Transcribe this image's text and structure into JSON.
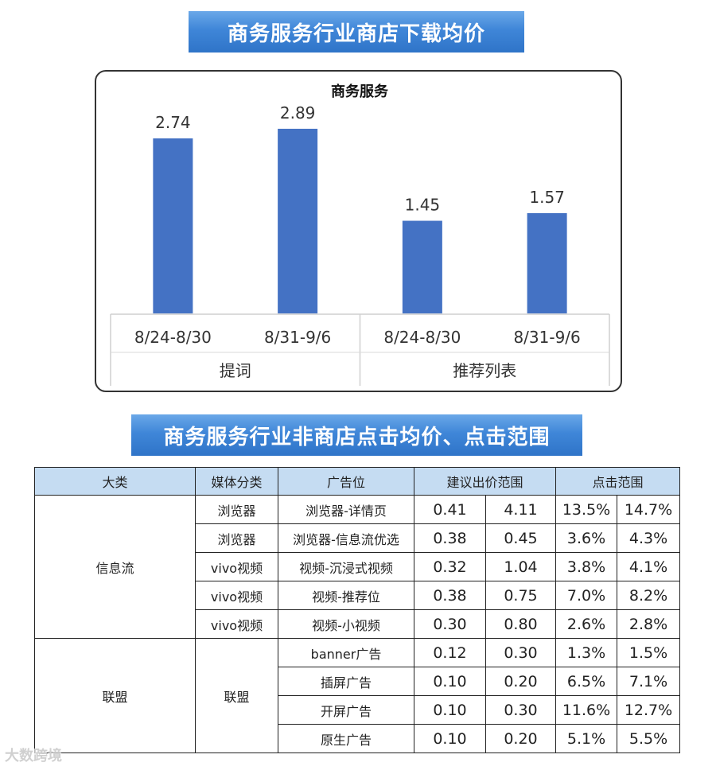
{
  "banner_top": "商务服务行业商店下载均价",
  "banner_bottom": "商务服务行业非商店点击均价、点击范围",
  "chart_data": {
    "type": "bar",
    "title": "商务服务",
    "groups": [
      {
        "name": "提词",
        "categories": [
          "8/24-8/30",
          "8/31-9/6"
        ],
        "values": [
          2.74,
          2.89
        ]
      },
      {
        "name": "推荐列表",
        "categories": [
          "8/24-8/30",
          "8/31-9/6"
        ],
        "values": [
          1.45,
          1.57
        ]
      }
    ],
    "value_labels": [
      "2.74",
      "2.89",
      "1.45",
      "1.57"
    ],
    "ylim": [
      0,
      3.2
    ],
    "grid": false,
    "bar_color": "#4472c4"
  },
  "table": {
    "headers": [
      "大类",
      "媒体分类",
      "广告位",
      "建议出价范围",
      "点击范围"
    ],
    "groups": [
      {
        "category": "信息流",
        "rows": [
          {
            "media": "浏览器",
            "slot": "浏览器-详情页",
            "bid_min": "0.41",
            "bid_max": "4.11",
            "click_min": "13.5%",
            "click_max": "14.7%"
          },
          {
            "media": "浏览器",
            "slot": "浏览器-信息流优选",
            "bid_min": "0.38",
            "bid_max": "0.45",
            "click_min": "3.6%",
            "click_max": "4.3%"
          },
          {
            "media": "vivo视频",
            "slot": "视频-沉浸式视频",
            "bid_min": "0.32",
            "bid_max": "1.04",
            "click_min": "3.8%",
            "click_max": "4.1%"
          },
          {
            "media": "vivo视频",
            "slot": "视频-推荐位",
            "bid_min": "0.38",
            "bid_max": "0.75",
            "click_min": "7.0%",
            "click_max": "8.2%"
          },
          {
            "media": "vivo视频",
            "slot": "视频-小视频",
            "bid_min": "0.30",
            "bid_max": "0.80",
            "click_min": "2.6%",
            "click_max": "2.8%"
          }
        ]
      },
      {
        "category": "联盟",
        "media": "联盟",
        "rows": [
          {
            "slot": "banner广告",
            "bid_min": "0.12",
            "bid_max": "0.30",
            "click_min": "1.3%",
            "click_max": "1.5%"
          },
          {
            "slot": "插屏广告",
            "bid_min": "0.10",
            "bid_max": "0.20",
            "click_min": "6.5%",
            "click_max": "7.1%"
          },
          {
            "slot": "开屏广告",
            "bid_min": "0.10",
            "bid_max": "0.30",
            "click_min": "11.6%",
            "click_max": "12.7%"
          },
          {
            "slot": "原生广告",
            "bid_min": "0.10",
            "bid_max": "0.20",
            "click_min": "5.1%",
            "click_max": "5.5%"
          }
        ]
      }
    ]
  },
  "watermark": "大数跨境"
}
